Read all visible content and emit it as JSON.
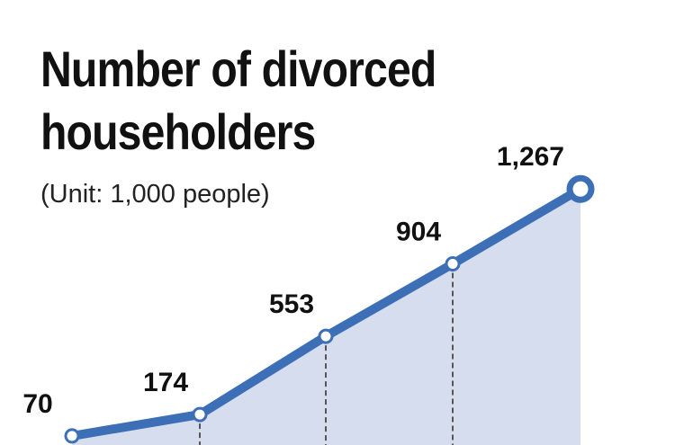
{
  "chart_data": {
    "type": "area-line",
    "title": "Number of divorced householders",
    "subtitle": "(Unit: 1,000 people)",
    "categories": [
      null,
      null,
      null,
      null,
      null
    ],
    "values": [
      70,
      174,
      553,
      904,
      1267
    ],
    "value_labels": [
      "70",
      "174",
      "553",
      "904",
      "1,267"
    ],
    "color": "#3d6fb6",
    "fill": "#d5ddef",
    "ylim": [
      0,
      2000
    ]
  }
}
